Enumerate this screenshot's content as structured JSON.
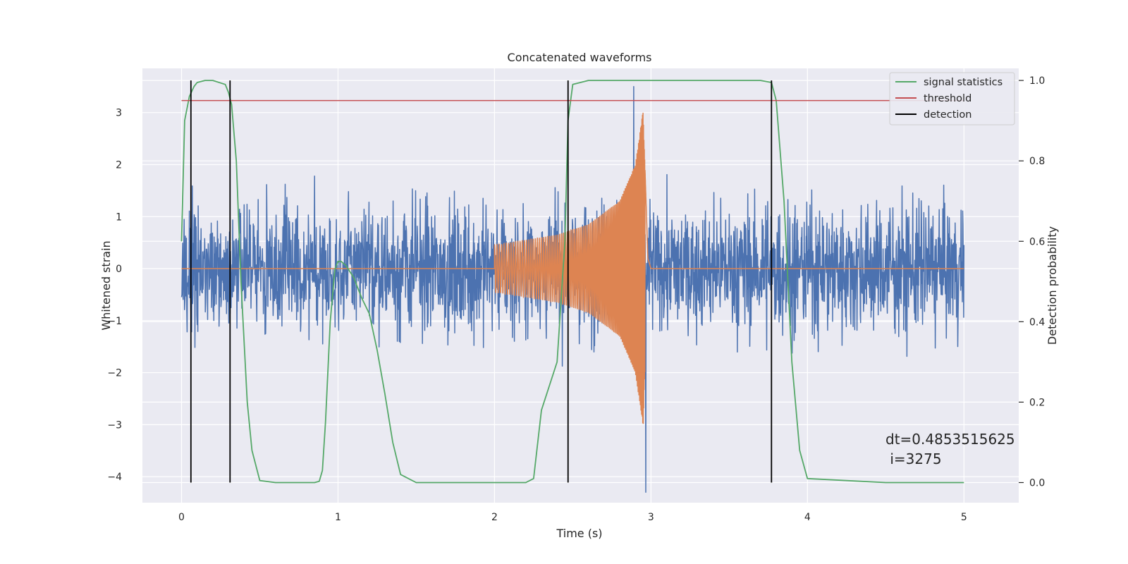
{
  "chart_data": {
    "type": "line",
    "title": "Concatenated waveforms",
    "xlabel": "Time (s)",
    "ylabel": "Whitened strain",
    "y2label": "Detection probability",
    "xlim": [
      -0.25,
      5.35
    ],
    "ylim": [
      -4.5,
      3.85
    ],
    "y2lim": [
      -0.05,
      1.03
    ],
    "x_ticks": [
      0,
      1,
      2,
      3,
      4,
      5
    ],
    "y_ticks": [
      -4,
      -3,
      -2,
      -1,
      0,
      1,
      2,
      3
    ],
    "y2_ticks": [
      0.0,
      0.2,
      0.4,
      0.6,
      0.8,
      1.0
    ],
    "x_tick_labels": [
      "0",
      "1",
      "2",
      "3",
      "4",
      "5"
    ],
    "y_tick_labels": [
      "−4",
      "−3",
      "−2",
      "−1",
      "0",
      "1",
      "2",
      "3"
    ],
    "y2_tick_labels": [
      "0.0",
      "0.2",
      "0.4",
      "0.6",
      "0.8",
      "1.0"
    ],
    "grid": true,
    "legend_position": "top-right",
    "annotation": {
      "line1": "dt=0.4853515625",
      "line2": " i=3275",
      "x": 4.5,
      "y": -3.55
    },
    "series": [
      {
        "name": "",
        "axis": "left",
        "color": "#4c72b0",
        "kind": "noise strain",
        "x_range": [
          0,
          5
        ],
        "typical_range": [
          -2.0,
          2.3
        ],
        "extremes": {
          "max": 3.5,
          "min": -4.3
        }
      },
      {
        "name": "",
        "axis": "left",
        "color": "#dd8452",
        "kind": "injected chirp",
        "x": [
          0,
          2.0,
          2.2,
          2.4,
          2.6,
          2.8,
          2.9,
          2.95,
          2.98,
          3.0,
          5.0
        ],
        "amplitude": [
          0,
          0.45,
          0.55,
          0.65,
          0.85,
          1.3,
          2.0,
          3.05,
          0.2,
          0,
          0
        ]
      },
      {
        "name": "signal statistics",
        "axis": "right",
        "color": "#55a868",
        "x": [
          0,
          0.02,
          0.05,
          0.08,
          0.1,
          0.15,
          0.2,
          0.28,
          0.3,
          0.32,
          0.35,
          0.38,
          0.42,
          0.45,
          0.5,
          0.6,
          0.8,
          0.85,
          0.88,
          0.9,
          0.92,
          0.95,
          0.98,
          1.0,
          1.02,
          1.05,
          1.1,
          1.15,
          1.2,
          1.25,
          1.3,
          1.35,
          1.4,
          1.5,
          2.0,
          2.2,
          2.25,
          2.3,
          2.35,
          2.4,
          2.45,
          2.47,
          2.5,
          2.6,
          3.0,
          3.6,
          3.7,
          3.77,
          3.8,
          3.85,
          3.9,
          3.95,
          4.0,
          4.5,
          5.0
        ],
        "values": [
          0.6,
          0.9,
          0.96,
          0.985,
          0.995,
          1.0,
          1.0,
          0.99,
          0.97,
          0.94,
          0.8,
          0.5,
          0.2,
          0.08,
          0.005,
          0.0,
          0.0,
          0.0,
          0.003,
          0.03,
          0.15,
          0.4,
          0.53,
          0.55,
          0.55,
          0.54,
          0.51,
          0.46,
          0.42,
          0.33,
          0.22,
          0.1,
          0.02,
          0.0,
          0.0,
          0.0,
          0.01,
          0.18,
          0.24,
          0.3,
          0.6,
          0.9,
          0.99,
          1.0,
          1.0,
          1.0,
          1.0,
          0.995,
          0.95,
          0.7,
          0.3,
          0.08,
          0.01,
          0.0,
          0.0
        ]
      },
      {
        "name": "threshold",
        "axis": "right",
        "color": "#c44e52",
        "x": [
          0,
          5
        ],
        "values": [
          0.95,
          0.95
        ]
      },
      {
        "name": "detection",
        "axis": "right",
        "color": "#000000",
        "kind": "vertical lines",
        "x": [
          0.06,
          0.31,
          2.47,
          3.77
        ],
        "y_range": [
          0.0,
          1.0
        ]
      }
    ],
    "colors": {
      "plot_background": "#eaeaf2",
      "grid": "#ffffff",
      "text": "#262626"
    }
  }
}
